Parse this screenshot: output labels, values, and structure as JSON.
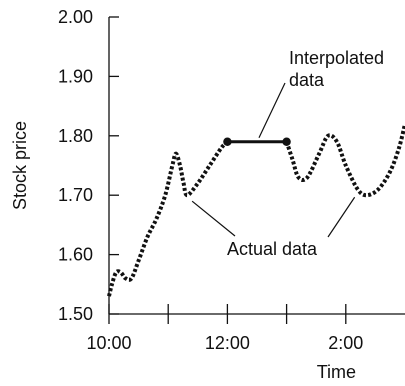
{
  "chart_data": {
    "type": "line",
    "xlabel": "Time",
    "ylabel": "Stock price",
    "ylim": [
      1.5,
      2.0
    ],
    "y_ticks": [
      {
        "value": 1.5,
        "label": "1.50"
      },
      {
        "value": 1.6,
        "label": "1.60"
      },
      {
        "value": 1.7,
        "label": "1.70"
      },
      {
        "value": 1.8,
        "label": "1.80"
      },
      {
        "value": 1.9,
        "label": "1.90"
      },
      {
        "value": 2.0,
        "label": "2.00"
      }
    ],
    "x_ticks": [
      {
        "value": 10.0,
        "label": "10:00"
      },
      {
        "value": 11.0,
        "label": ""
      },
      {
        "value": 12.0,
        "label": "12:00"
      },
      {
        "value": 13.0,
        "label": ""
      },
      {
        "value": 14.0,
        "label": "2:00"
      }
    ],
    "xlim": [
      10.0,
      15.0
    ],
    "series": [
      {
        "style": "dotted",
        "values": [
          [
            10.0,
            1.53
          ],
          [
            10.05,
            1.55
          ],
          [
            10.12,
            1.57
          ],
          [
            10.2,
            1.57
          ],
          [
            10.28,
            1.56
          ],
          [
            10.38,
            1.56
          ],
          [
            10.5,
            1.59
          ],
          [
            10.65,
            1.63
          ],
          [
            10.8,
            1.66
          ],
          [
            10.95,
            1.7
          ],
          [
            11.07,
            1.75
          ],
          [
            11.13,
            1.77
          ],
          [
            11.2,
            1.75
          ],
          [
            11.26,
            1.72
          ],
          [
            11.32,
            1.7
          ],
          [
            11.5,
            1.72
          ],
          [
            11.7,
            1.75
          ],
          [
            11.9,
            1.78
          ],
          [
            12.0,
            1.79
          ]
        ]
      },
      {
        "style": "solid",
        "values": [
          [
            12.0,
            1.79
          ],
          [
            13.0,
            1.79
          ]
        ]
      },
      {
        "style": "dotted",
        "values": [
          [
            13.0,
            1.79
          ],
          [
            13.1,
            1.76
          ],
          [
            13.2,
            1.73
          ],
          [
            13.35,
            1.73
          ],
          [
            13.55,
            1.77
          ],
          [
            13.7,
            1.8
          ],
          [
            13.85,
            1.79
          ],
          [
            14.0,
            1.75
          ],
          [
            14.2,
            1.71
          ],
          [
            14.35,
            1.7
          ],
          [
            14.55,
            1.71
          ],
          [
            14.75,
            1.74
          ],
          [
            14.9,
            1.78
          ],
          [
            15.0,
            1.82
          ]
        ]
      }
    ],
    "markers": [
      [
        12.0,
        1.79
      ],
      [
        13.0,
        1.79
      ]
    ],
    "annotations": [
      {
        "text_lines": [
          "Interpolated",
          "data"
        ],
        "target": [
          12.5,
          1.79
        ]
      },
      {
        "text_lines": [
          "Actual data"
        ],
        "targets": [
          [
            11.32,
            1.7
          ],
          [
            14.2,
            1.71
          ]
        ]
      }
    ],
    "grid": false
  }
}
